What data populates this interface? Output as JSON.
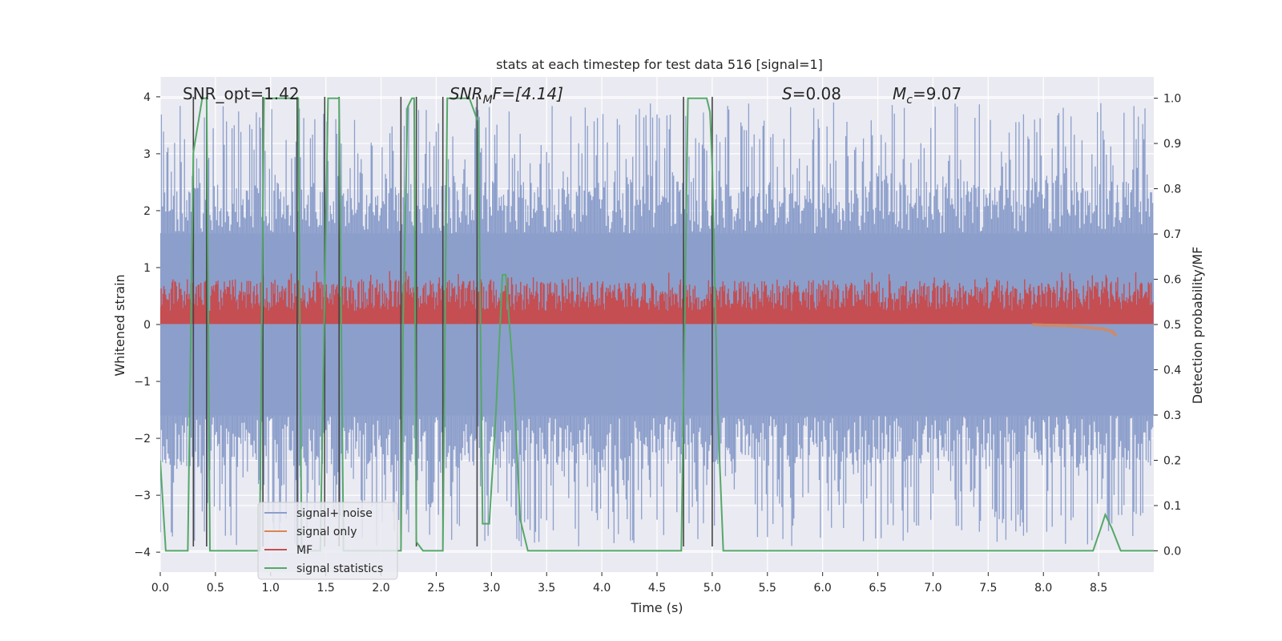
{
  "chart_data": {
    "type": "line",
    "title": "stats at each timestep for test data 516 [signal=1]",
    "xlabel": "Time (s)",
    "ylabel_left": "Whitened strain",
    "ylabel_right": "Detection probability/MF",
    "xlim": [
      0.0,
      9.0
    ],
    "ylim_left": [
      -4.35,
      4.35
    ],
    "ylim_right": [
      -0.047,
      1.047
    ],
    "x_ticks": [
      "0.0",
      "0.5",
      "1.0",
      "1.5",
      "2.0",
      "2.5",
      "3.0",
      "3.5",
      "4.0",
      "4.5",
      "5.0",
      "5.5",
      "6.0",
      "6.5",
      "7.0",
      "7.5",
      "8.0",
      "8.5"
    ],
    "x_tick_values": [
      0.0,
      0.5,
      1.0,
      1.5,
      2.0,
      2.5,
      3.0,
      3.5,
      4.0,
      4.5,
      5.0,
      5.5,
      6.0,
      6.5,
      7.0,
      7.5,
      8.0,
      8.5
    ],
    "y_left_ticks": [
      "−4",
      "−3",
      "−2",
      "−1",
      "0",
      "1",
      "2",
      "3",
      "4"
    ],
    "y_left_tick_values": [
      -4,
      -3,
      -2,
      -1,
      0,
      1,
      2,
      3,
      4
    ],
    "y_right_ticks": [
      "0.0",
      "0.1",
      "0.2",
      "0.3",
      "0.4",
      "0.5",
      "0.6",
      "0.7",
      "0.8",
      "0.9",
      "1.0"
    ],
    "y_right_tick_values": [
      0.0,
      0.1,
      0.2,
      0.3,
      0.4,
      0.5,
      0.6,
      0.7,
      0.8,
      0.9,
      1.0
    ],
    "grid": true,
    "annotations": [
      {
        "text": "SNR_opt=1.42",
        "x": 0.2,
        "y": 4.05
      },
      {
        "text": "SNR_MF=[4.14]",
        "x": 2.6,
        "y": 4.05
      },
      {
        "text": "S=0.08",
        "x": 5.6,
        "y": 4.05
      },
      {
        "text": "M_c=9.07",
        "x": 6.6,
        "y": 4.05
      }
    ],
    "annotation_parts": {
      "snr_opt": "SNR_opt=1.42",
      "snr_mf_main": "SNR",
      "snr_mf_sub": "M",
      "snr_mf_rest": "F=[4.14]",
      "s_var": "S",
      "s_rest": "=0.08",
      "mc_var": "M",
      "mc_sub": "c",
      "mc_rest": "=9.07"
    },
    "legend": {
      "placement": "lower-left",
      "entries": [
        "signal+ noise",
        "signal only",
        "MF",
        "signal statistics"
      ]
    },
    "colors": {
      "noise": "#8c9fcb",
      "signal": "#dd8452",
      "mf": "#c44e52",
      "stat": "#55a868",
      "vline": "#444444",
      "background": "#eaeaf2",
      "grid": "#ffffff"
    },
    "series": [
      {
        "name": "signal statistics",
        "axis": "right",
        "x": [
          0.0,
          0.05,
          0.25,
          0.3,
          0.38,
          0.42,
          0.45,
          0.5,
          0.55,
          0.9,
          0.94,
          0.98,
          1.25,
          1.28,
          1.45,
          1.52,
          1.56,
          1.62,
          1.66,
          1.75,
          1.9,
          2.0,
          2.1,
          2.18,
          2.2,
          2.24,
          2.28,
          2.3,
          2.32,
          2.38,
          2.42,
          2.46,
          2.5,
          2.56,
          2.6,
          2.7,
          2.8,
          2.86,
          2.88,
          2.92,
          2.98,
          3.04,
          3.1,
          3.13,
          3.2,
          3.26,
          3.33,
          3.4,
          3.6,
          3.8,
          4.5,
          4.72,
          4.78,
          4.82,
          4.95,
          4.98,
          5.0,
          5.05,
          5.1,
          5.5,
          6.0,
          6.5,
          7.0,
          7.5,
          8.0,
          8.45,
          8.52,
          8.56,
          8.62,
          8.7,
          9.0
        ],
        "values": [
          0.2,
          0.0,
          0.0,
          0.88,
          1.0,
          1.0,
          0.0,
          0.0,
          0.0,
          0.0,
          1.0,
          1.0,
          1.0,
          0.0,
          0.0,
          1.0,
          1.0,
          1.0,
          0.0,
          0.0,
          0.0,
          0.0,
          0.0,
          0.0,
          0.5,
          0.98,
          1.0,
          1.0,
          0.02,
          0.0,
          0.0,
          0.0,
          0.0,
          0.0,
          1.0,
          1.0,
          1.0,
          0.96,
          0.95,
          0.06,
          0.06,
          0.3,
          0.61,
          0.61,
          0.38,
          0.07,
          0.0,
          0.0,
          0.0,
          0.0,
          0.0,
          0.0,
          1.0,
          1.0,
          1.0,
          0.97,
          0.85,
          0.3,
          0.0,
          0.0,
          0.0,
          0.0,
          0.0,
          0.0,
          0.0,
          0.0,
          0.05,
          0.08,
          0.05,
          0.0,
          0.0
        ]
      },
      {
        "name": "signal only",
        "axis": "left",
        "x": [
          7.9,
          8.0,
          8.2,
          8.4,
          8.55,
          8.62,
          8.66
        ],
        "values": [
          0.0,
          -0.01,
          -0.02,
          -0.05,
          -0.08,
          -0.12,
          -0.2
        ]
      }
    ],
    "noise_band": {
      "series": "signal+ noise",
      "core_range": [
        -1.6,
        1.6
      ],
      "peak_range": [
        -3.9,
        3.9
      ]
    },
    "mf_band": {
      "series": "MF",
      "axis": "right",
      "range": [
        0.5,
        0.6
      ]
    },
    "vertical_lines_x": [
      0.3,
      0.42,
      0.93,
      1.24,
      1.49,
      1.62,
      2.18,
      2.32,
      2.56,
      2.87,
      4.74,
      5.0
    ]
  }
}
